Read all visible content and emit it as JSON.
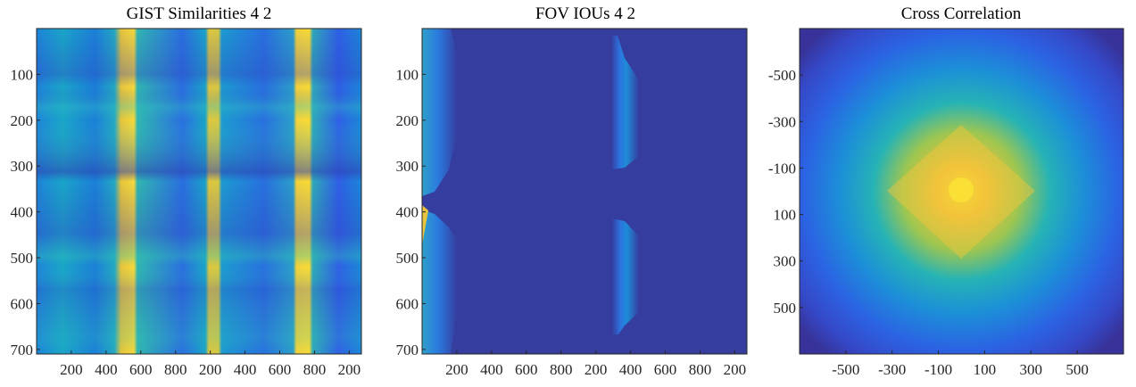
{
  "chart_data": [
    {
      "type": "heatmap",
      "title": "GIST Similarities 4 2",
      "colormap": "parula",
      "y_ticks": [
        "100",
        "200",
        "300",
        "400",
        "500",
        "600",
        "700"
      ],
      "x_ticks": [
        "200",
        "400",
        "600",
        "800",
        "200",
        "400",
        "600",
        "800",
        "200"
      ],
      "y_range": [
        0,
        710
      ],
      "x_range": [
        0,
        1870
      ],
      "bright_columns_x": [
        400,
        800,
        1180
      ],
      "bright_bands": [
        [
          390,
          420
        ],
        [
          790,
          810
        ],
        [
          1170,
          1210
        ]
      ]
    },
    {
      "type": "heatmap",
      "title": "FOV IOUs 4 2",
      "colormap": "parula",
      "y_ticks": [
        "100",
        "200",
        "300",
        "400",
        "500",
        "600",
        "700"
      ],
      "x_ticks": [
        "200",
        "400",
        "600",
        "800",
        "200",
        "400",
        "600",
        "800",
        "200"
      ],
      "y_range": [
        0,
        710
      ],
      "x_range": [
        0,
        1870
      ],
      "bright_regions": [
        {
          "x": [
            0,
            130
          ],
          "y": [
            0,
            710
          ]
        },
        {
          "x": [
            1230,
            1330
          ],
          "y": [
            40,
            310
          ]
        },
        {
          "x": [
            1230,
            1330
          ],
          "y": [
            430,
            680
          ]
        }
      ]
    },
    {
      "type": "heatmap",
      "title": "Cross Correlation",
      "colormap": "parula",
      "y_ticks": [
        "-500",
        "-300",
        "-100",
        "100",
        "300",
        "500"
      ],
      "x_ticks": [
        "-500",
        "-300",
        "-100",
        "100",
        "300",
        "500"
      ],
      "x_range": [
        -700,
        700
      ],
      "y_range": [
        -700,
        700
      ],
      "peak": [
        0,
        0
      ]
    }
  ]
}
